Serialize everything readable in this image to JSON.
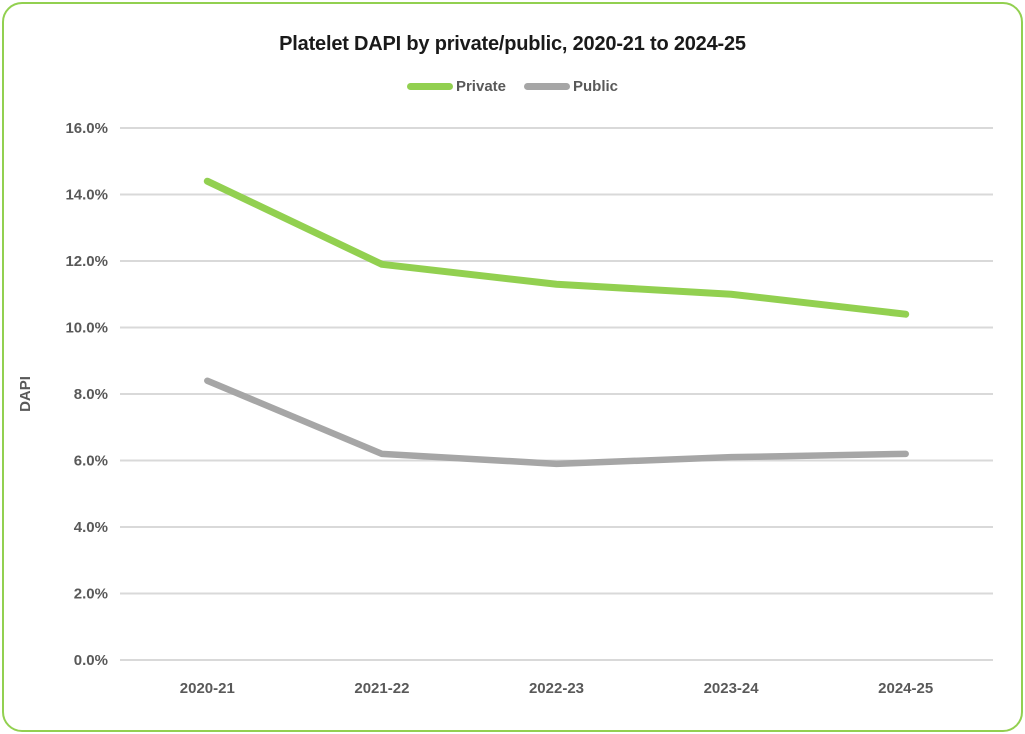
{
  "chart_data": {
    "type": "line",
    "title": "Platelet DAPI by private/public, 2020-21 to 2024-25",
    "xlabel": "",
    "ylabel": "DAPI",
    "categories": [
      "2020-21",
      "2021-22",
      "2022-23",
      "2023-24",
      "2024-25"
    ],
    "series": [
      {
        "name": "Private",
        "color": "#92D050",
        "values": [
          14.4,
          11.9,
          11.3,
          11.0,
          10.4
        ]
      },
      {
        "name": "Public",
        "color": "#A6A6A6",
        "values": [
          8.4,
          6.2,
          5.9,
          6.1,
          6.2
        ]
      }
    ],
    "ylim": [
      0,
      16
    ],
    "ytick_step": 2,
    "ytick_labels": [
      "0.0%",
      "2.0%",
      "4.0%",
      "6.0%",
      "8.0%",
      "10.0%",
      "12.0%",
      "14.0%",
      "16.0%"
    ],
    "grid": true,
    "legend_position": "top"
  },
  "styles": {
    "accent_green": "#92D050",
    "series_gray": "#A6A6A6",
    "grid_color": "#D9D9D9",
    "tick_text_color": "#595959",
    "title_color": "#1A1A1A",
    "background": "#FFFFFF"
  }
}
